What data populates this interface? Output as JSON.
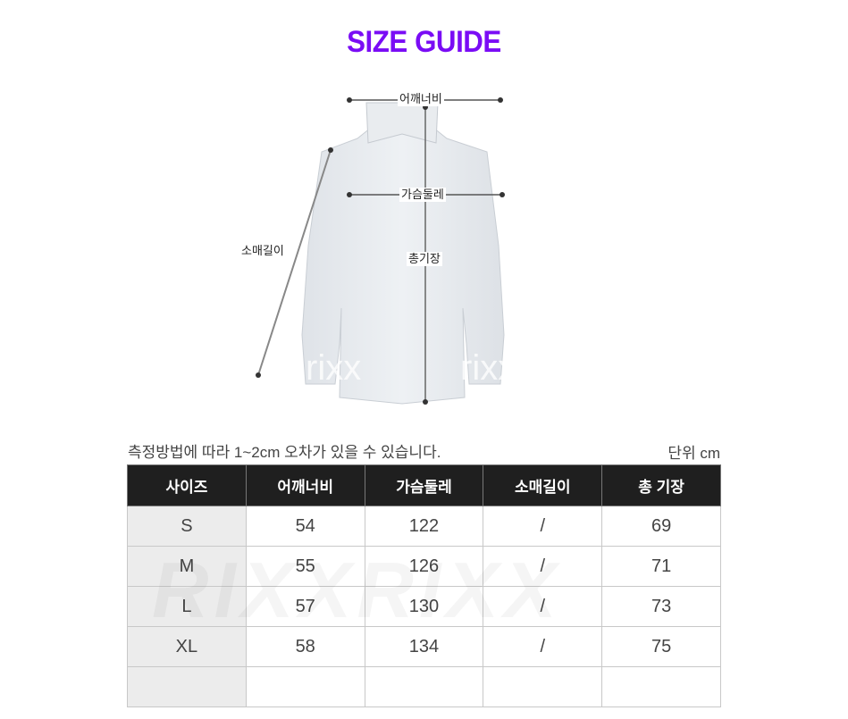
{
  "title": "SIZE GUIDE",
  "diagram": {
    "labels": {
      "shoulder": "어깨너비",
      "chest": "가슴둘레",
      "sleeve": "소매길이",
      "length": "총기장"
    },
    "watermark": "rixx"
  },
  "note": "측정방법에 따라 1~2cm 오차가 있을 수 있습니다.",
  "unit": "단위 cm",
  "table": {
    "headers": [
      "사이즈",
      "어깨너비",
      "가슴둘레",
      "소매길이",
      "총 기장"
    ],
    "rows": [
      [
        "S",
        "54",
        "122",
        "/",
        "69"
      ],
      [
        "M",
        "55",
        "126",
        "/",
        "71"
      ],
      [
        "L",
        "57",
        "130",
        "/",
        "73"
      ],
      [
        "XL",
        "58",
        "134",
        "/",
        "75"
      ],
      [
        "",
        "",
        "",
        "",
        ""
      ]
    ],
    "watermark": "RIXXRIXX"
  },
  "colors": {
    "title": "#7a0cf5",
    "header_bg": "#1f1f1f",
    "size_col_bg": "#ececec"
  }
}
